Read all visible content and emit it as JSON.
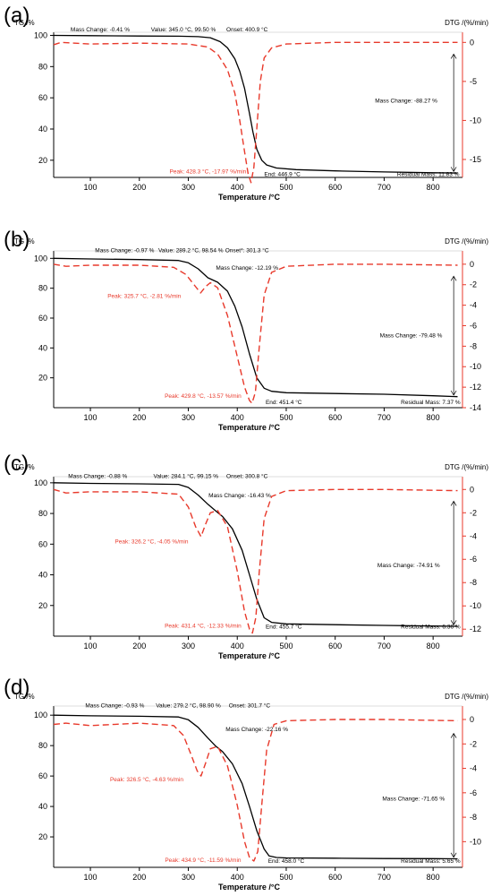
{
  "chart_data": [
    {
      "type": "line",
      "panel_label": "(a)",
      "ylabel_left": "TG /%",
      "ylabel_right": "DTG /(%/min)",
      "xlabel": "Temperature /°C",
      "xlim": [
        25,
        860
      ],
      "ylim_left": [
        9,
        102
      ],
      "ylim_right": [
        -17.3,
        1.3
      ],
      "xticks": [
        100,
        200,
        300,
        400,
        500,
        600,
        700,
        800
      ],
      "yticks_left": [
        20,
        40,
        60,
        80,
        100
      ],
      "yticks_right": [
        0,
        -5,
        -10,
        -15
      ],
      "series": [
        {
          "name": "TG",
          "color": "#000000",
          "dash": "solid",
          "x": [
            25,
            100,
            200,
            280,
            320,
            345,
            365,
            380,
            395,
            405,
            415,
            425,
            432,
            440,
            450,
            460,
            480,
            520,
            600,
            700,
            800,
            850
          ],
          "y": [
            100,
            99.8,
            99.6,
            99.5,
            99.2,
            98.5,
            96,
            92,
            85,
            77,
            66,
            50,
            38,
            27,
            20,
            17,
            15,
            14,
            13.2,
            12.5,
            12,
            11.8
          ]
        },
        {
          "name": "DTG",
          "color": "#e8392b",
          "dash": "dashed",
          "x": [
            25,
            40,
            100,
            200,
            300,
            340,
            360,
            380,
            395,
            405,
            415,
            422,
            428,
            434,
            440,
            447,
            455,
            470,
            500,
            600,
            700,
            850
          ],
          "y": [
            -0.3,
            0,
            -0.2,
            -0.1,
            -0.2,
            -0.6,
            -1.5,
            -3.5,
            -6.5,
            -10,
            -14,
            -16.8,
            -17.97,
            -16,
            -11,
            -5,
            -2,
            -0.7,
            -0.2,
            0,
            0,
            0
          ]
        }
      ],
      "annotations": [
        {
          "text": "Mass Change: -0.41 %",
          "x": 120,
          "y": 102.5,
          "color": "#000"
        },
        {
          "text": "Value: 345.0 °C, 99.50 %",
          "x": 290,
          "y": 102.5,
          "color": "#000"
        },
        {
          "text": "Onset: 400.9 °C",
          "x": 420,
          "y": 102.5,
          "color": "#000"
        },
        {
          "text": "Mass Change: -88.27 %",
          "x": 745,
          "y": 57,
          "color": "#000"
        },
        {
          "text": "Peak: 428.3 °C, -17.97 %/min",
          "x": 340,
          "y": 11.5,
          "color": "#e8392b"
        },
        {
          "text": "End: 446.9 °C",
          "x": 492,
          "y": 10,
          "color": "#000"
        },
        {
          "text": "Residual Mass: 11.83 %",
          "x": 790,
          "y": 10,
          "color": "#000"
        }
      ]
    },
    {
      "type": "line",
      "panel_label": "(b)",
      "ylabel_left": "TG /%",
      "ylabel_right": "DTG /(%/min)",
      "xlabel": "Temperature /°C",
      "xlim": [
        25,
        860
      ],
      "ylim_left": [
        0,
        105
      ],
      "ylim_right": [
        -14,
        1.3
      ],
      "xticks": [
        100,
        200,
        300,
        400,
        500,
        600,
        700,
        800
      ],
      "yticks_left": [
        20,
        40,
        60,
        80,
        100
      ],
      "yticks_right": [
        0,
        -2,
        -4,
        -6,
        -8,
        -10,
        -12,
        -14
      ],
      "series": [
        {
          "name": "TG",
          "color": "#000000",
          "dash": "solid",
          "x": [
            25,
            100,
            200,
            280,
            300,
            320,
            340,
            360,
            380,
            395,
            410,
            425,
            440,
            455,
            470,
            500,
            600,
            700,
            800,
            850
          ],
          "y": [
            100,
            99.6,
            99.2,
            98.6,
            97,
            93,
            87,
            84,
            78,
            68,
            54,
            36,
            20,
            13,
            11,
            10,
            9.5,
            9,
            8,
            7.4
          ]
        },
        {
          "name": "DTG",
          "color": "#e8392b",
          "dash": "dashed",
          "x": [
            25,
            50,
            100,
            200,
            270,
            295,
            315,
            325,
            335,
            345,
            360,
            380,
            400,
            415,
            425,
            430,
            437,
            445,
            455,
            470,
            500,
            600,
            700,
            850
          ],
          "y": [
            0,
            -0.2,
            -0.1,
            -0.1,
            -0.3,
            -1,
            -2.2,
            -2.81,
            -2.2,
            -1.8,
            -2.3,
            -5,
            -9,
            -12,
            -13.3,
            -13.57,
            -12.5,
            -8,
            -3,
            -0.8,
            -0.2,
            0,
            0,
            -0.1
          ]
        }
      ],
      "annotations": [
        {
          "text": "Mass Change: -0.97 %",
          "x": 170,
          "y": 104,
          "color": "#000"
        },
        {
          "text": "Value: 289.2 °C, 98.54 %",
          "x": 305,
          "y": 104,
          "color": "#000"
        },
        {
          "text": "Onset*: 301.3 °C",
          "x": 420,
          "y": 104,
          "color": "#000"
        },
        {
          "text": "Mass Change: -12.19 %",
          "x": 420,
          "y": 92.5,
          "color": "#000"
        },
        {
          "text": "Peak: 325.7 °C, -2.81 %/min",
          "x": 210,
          "y": 73.5,
          "color": "#e8392b"
        },
        {
          "text": "Mass Change: -79.48 %",
          "x": 755,
          "y": 47,
          "color": "#000"
        },
        {
          "text": "Peak: 429.8 °C, -13.57 %/min",
          "x": 330,
          "y": 6.5,
          "color": "#e8392b"
        },
        {
          "text": "End: 451.4 °C",
          "x": 495,
          "y": 2.5,
          "color": "#000"
        },
        {
          "text": "Residual Mass: 7.37 %",
          "x": 795,
          "y": 2.5,
          "color": "#000"
        }
      ]
    },
    {
      "type": "line",
      "panel_label": "(c)",
      "ylabel_left": "TG /%",
      "ylabel_right": "DTG /(%/min)",
      "xlabel": "Temperature /°C",
      "xlim": [
        25,
        860
      ],
      "ylim_left": [
        0,
        104
      ],
      "ylim_right": [
        -12.6,
        1.1
      ],
      "xticks": [
        100,
        200,
        300,
        400,
        500,
        600,
        700,
        800
      ],
      "yticks_left": [
        20,
        40,
        60,
        80,
        100
      ],
      "yticks_right": [
        0,
        -2,
        -4,
        -6,
        -8,
        -10,
        -12
      ],
      "series": [
        {
          "name": "TG",
          "color": "#000000",
          "dash": "solid",
          "x": [
            25,
            100,
            200,
            280,
            300,
            320,
            340,
            355,
            370,
            390,
            410,
            425,
            440,
            455,
            470,
            500,
            600,
            700,
            800,
            850
          ],
          "y": [
            100,
            99.6,
            99.3,
            99,
            97,
            92,
            86,
            82,
            78,
            70,
            56,
            40,
            24,
            12,
            9,
            8,
            7.5,
            7,
            6.6,
            6.4
          ]
        },
        {
          "name": "DTG",
          "color": "#e8392b",
          "dash": "dashed",
          "x": [
            25,
            50,
            100,
            200,
            280,
            300,
            315,
            326,
            335,
            345,
            360,
            380,
            400,
            415,
            425,
            431,
            438,
            445,
            455,
            470,
            500,
            600,
            700,
            850
          ],
          "y": [
            0,
            -0.3,
            -0.2,
            -0.2,
            -0.4,
            -1.5,
            -3.2,
            -4.05,
            -3,
            -2,
            -1.8,
            -3.2,
            -7,
            -10.5,
            -12,
            -12.33,
            -11,
            -7,
            -2.5,
            -0.6,
            -0.1,
            0,
            0,
            -0.1
          ]
        }
      ],
      "annotations": [
        {
          "text": "Mass Change: -0.88 %",
          "x": 115,
          "y": 103,
          "color": "#000"
        },
        {
          "text": "Value: 284.1 °C, 99.15 %",
          "x": 295,
          "y": 103,
          "color": "#000"
        },
        {
          "text": "Onset: 300.8 °C",
          "x": 420,
          "y": 103,
          "color": "#000"
        },
        {
          "text": "Mass Change: -16.43 %",
          "x": 405,
          "y": 90.5,
          "color": "#000"
        },
        {
          "text": "Peak: 326.2 °C, -4.05 %/min",
          "x": 225,
          "y": 60.5,
          "color": "#e8392b"
        },
        {
          "text": "Mass Change: -74.91 %",
          "x": 750,
          "y": 45,
          "color": "#000"
        },
        {
          "text": "Peak: 431.4 °C, -12.33 %/min",
          "x": 330,
          "y": 5.5,
          "color": "#e8392b"
        },
        {
          "text": "End: 455.7 °C",
          "x": 495,
          "y": 5,
          "color": "#000"
        },
        {
          "text": "Residual Mass: 6.36 %",
          "x": 795,
          "y": 5,
          "color": "#000"
        }
      ]
    },
    {
      "type": "line",
      "panel_label": "(d)",
      "ylabel_left": "TG /%",
      "ylabel_right": "DTG /(%/min)",
      "xlabel": "Temperature /°C",
      "xlim": [
        25,
        860
      ],
      "ylim_left": [
        0,
        106
      ],
      "ylim_right": [
        -12.1,
        1.1
      ],
      "xticks": [
        100,
        200,
        300,
        400,
        500,
        600,
        700,
        800
      ],
      "yticks_left": [
        20,
        40,
        60,
        80,
        100
      ],
      "yticks_right": [
        0,
        -2,
        -4,
        -6,
        -8,
        -10
      ],
      "series": [
        {
          "name": "TG",
          "color": "#000000",
          "dash": "solid",
          "x": [
            25,
            100,
            200,
            280,
            300,
            320,
            340,
            355,
            370,
            390,
            410,
            425,
            440,
            455,
            465,
            480,
            500,
            600,
            700,
            800,
            850
          ],
          "y": [
            100,
            99.6,
            99.3,
            98.8,
            97,
            92,
            85,
            80,
            76,
            68,
            55,
            40,
            24,
            12,
            7.5,
            6.5,
            6.2,
            6,
            5.8,
            5.7,
            5.6
          ]
        },
        {
          "name": "DTG",
          "color": "#e8392b",
          "dash": "dashed",
          "x": [
            25,
            50,
            100,
            200,
            270,
            290,
            305,
            318,
            326,
            335,
            345,
            360,
            380,
            400,
            415,
            425,
            434,
            442,
            450,
            460,
            475,
            500,
            600,
            700,
            850
          ],
          "y": [
            -0.4,
            -0.3,
            -0.5,
            -0.3,
            -0.5,
            -1.3,
            -2.8,
            -4.2,
            -4.63,
            -3.6,
            -2.4,
            -2.2,
            -3.8,
            -7,
            -10,
            -11.3,
            -11.59,
            -10.8,
            -7,
            -2.5,
            -0.4,
            -0.1,
            0,
            0,
            -0.1
          ]
        }
      ],
      "annotations": [
        {
          "text": "Mass Change: -0.93 %",
          "x": 150,
          "y": 105,
          "color": "#000"
        },
        {
          "text": "Value: 279.2 °C, 98.90 %",
          "x": 300,
          "y": 105,
          "color": "#000"
        },
        {
          "text": "Onset: 301.7 °C",
          "x": 425,
          "y": 105,
          "color": "#000"
        },
        {
          "text": "Mass Change: -22.16 %",
          "x": 440,
          "y": 89.5,
          "color": "#000"
        },
        {
          "text": "Peak: 326.5 °C, -4.63 %/min",
          "x": 215,
          "y": 56.5,
          "color": "#e8392b"
        },
        {
          "text": "Mass Change: -71.65 %",
          "x": 760,
          "y": 44,
          "color": "#000"
        },
        {
          "text": "Peak: 434.9 °C, -11.59 %/min",
          "x": 330,
          "y": 3.5,
          "color": "#e8392b"
        },
        {
          "text": "End: 458.0 °C",
          "x": 500,
          "y": 3,
          "color": "#000"
        },
        {
          "text": "Residual Mass: 5.65 %",
          "x": 795,
          "y": 3,
          "color": "#000"
        }
      ]
    }
  ]
}
